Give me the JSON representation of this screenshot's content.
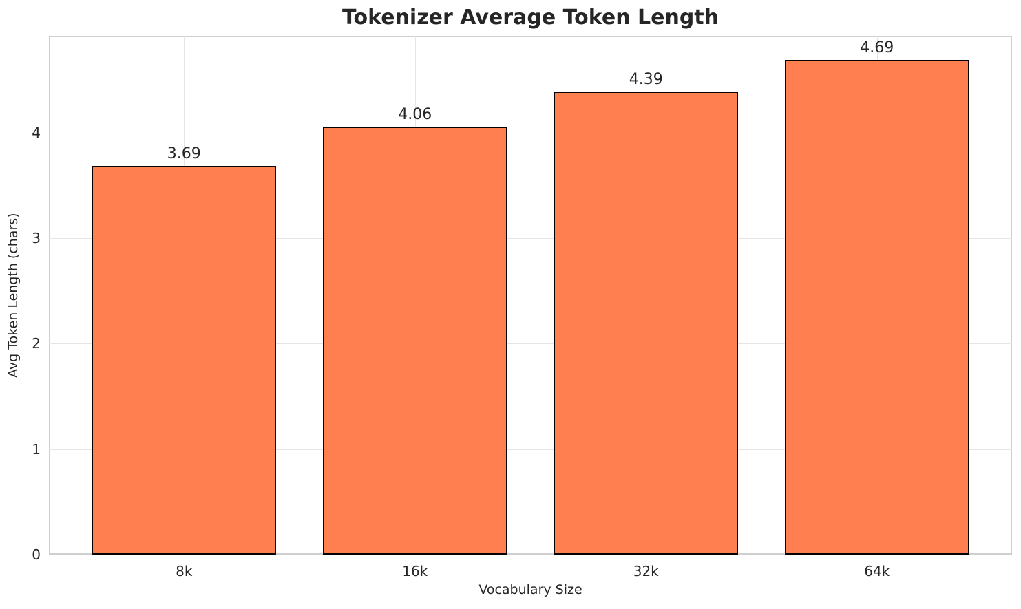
{
  "page": {
    "background_color": "#ffffff",
    "text_color": "#262626"
  },
  "chart_data": {
    "type": "bar",
    "title": "Tokenizer Average Token Length",
    "xlabel": "Vocabulary Size",
    "ylabel": "Avg Token Length (chars)",
    "categories": [
      "8k",
      "16k",
      "32k",
      "64k"
    ],
    "values": [
      3.69,
      4.06,
      4.39,
      4.69
    ],
    "value_labels": [
      "3.69",
      "4.06",
      "4.39",
      "4.69"
    ],
    "yticks": [
      0,
      1,
      2,
      3,
      4
    ],
    "ytick_labels": [
      "0",
      "1",
      "2",
      "3",
      "4"
    ],
    "ylim": [
      0,
      4.92
    ],
    "grid": true,
    "legend_position": "none",
    "bar_color": "#FF7F50",
    "bar_edge_color": "#000000",
    "grid_color": "#e5e5e5",
    "spine_color": "#cfcfcf"
  }
}
